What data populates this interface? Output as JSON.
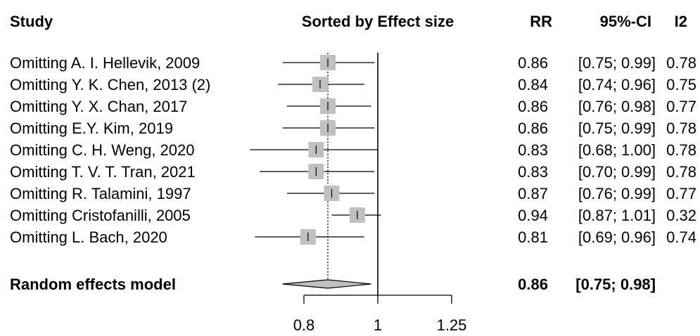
{
  "chart_data": {
    "type": "forest",
    "headers": {
      "study": "Study",
      "plot": "Sorted by Effect size",
      "rr": "RR",
      "ci": "95%-CI",
      "i2": "I2"
    },
    "x_scale": "log",
    "xlim": [
      0.68,
      1.25
    ],
    "ticks": [
      {
        "value": 0.8,
        "label": "0.8"
      },
      {
        "value": 1,
        "label": "1"
      },
      {
        "value": 1.25,
        "label": "1.25"
      }
    ],
    "reference_line": 1,
    "pooled_line": 0.86,
    "studies": [
      {
        "label": "Omitting A. I. Hellevik, 2009",
        "rr": 0.86,
        "lower": 0.75,
        "upper": 0.99,
        "rr_text": "0.86",
        "ci_text": "[0.75; 0.99]",
        "i2_text": "0.78"
      },
      {
        "label": "Omitting Y. K. Chen, 2013 (2)",
        "rr": 0.84,
        "lower": 0.74,
        "upper": 0.96,
        "rr_text": "0.84",
        "ci_text": "[0.74; 0.96]",
        "i2_text": "0.75"
      },
      {
        "label": "Omitting Y. X. Chan, 2017",
        "rr": 0.86,
        "lower": 0.76,
        "upper": 0.98,
        "rr_text": "0.86",
        "ci_text": "[0.76; 0.98]",
        "i2_text": "0.77"
      },
      {
        "label": "Omitting E.Y. Kim, 2019",
        "rr": 0.86,
        "lower": 0.75,
        "upper": 0.99,
        "rr_text": "0.86",
        "ci_text": "[0.75; 0.99]",
        "i2_text": "0.78"
      },
      {
        "label": "Omitting C. H. Weng, 2020",
        "rr": 0.83,
        "lower": 0.68,
        "upper": 1.0,
        "rr_text": "0.83",
        "ci_text": "[0.68; 1.00]",
        "i2_text": "0.78"
      },
      {
        "label": "Omitting T. V. T. Tran, 2021",
        "rr": 0.83,
        "lower": 0.7,
        "upper": 0.99,
        "rr_text": "0.83",
        "ci_text": "[0.70; 0.99]",
        "i2_text": "0.78"
      },
      {
        "label": "Omitting R. Talamini, 1997",
        "rr": 0.87,
        "lower": 0.76,
        "upper": 0.99,
        "rr_text": "0.87",
        "ci_text": "[0.76; 0.99]",
        "i2_text": "0.77"
      },
      {
        "label": "Omitting Cristofanilli, 2005",
        "rr": 0.94,
        "lower": 0.87,
        "upper": 1.01,
        "rr_text": "0.94",
        "ci_text": "[0.87; 1.01]",
        "i2_text": "0.32"
      },
      {
        "label": "Omitting L. Bach, 2020",
        "rr": 0.81,
        "lower": 0.69,
        "upper": 0.96,
        "rr_text": "0.81",
        "ci_text": "[0.69; 0.96]",
        "i2_text": "0.74"
      }
    ],
    "summary": {
      "label": "Random effects model",
      "rr": 0.86,
      "lower": 0.75,
      "upper": 0.98,
      "rr_text": "0.86",
      "ci_text": "[0.75; 0.98]"
    },
    "colors": {
      "box": "#c0c0c0",
      "diamond": "#c0c0c0",
      "line": "#000000"
    }
  }
}
